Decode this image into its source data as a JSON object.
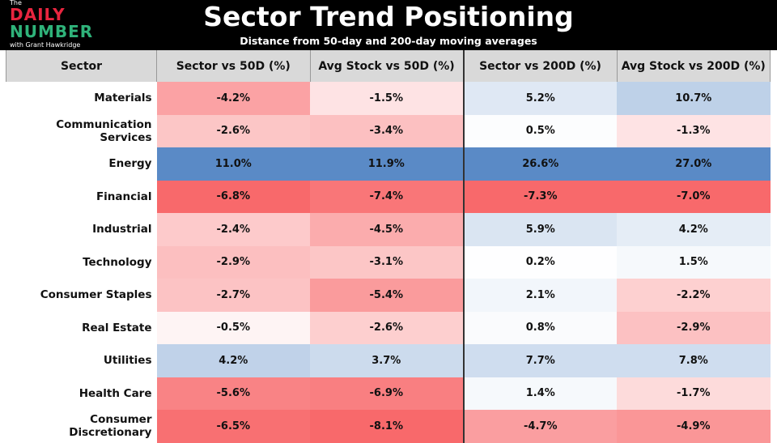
{
  "logo": {
    "the": "The",
    "daily": "DAILY",
    "number": "NUMBER",
    "byline": "with Grant Hawkridge"
  },
  "header": {
    "title": "Sector Trend Positioning",
    "subtitle": "Distance from 50-day and 200-day moving averages"
  },
  "chart_data": {
    "type": "heatmap",
    "columns": [
      "Sector",
      "Sector vs 50D (%)",
      "Avg Stock vs 50D (%)",
      "Sector vs 200D (%)",
      "Avg Stock vs 200D (%)"
    ],
    "rows": [
      {
        "sector": "Materials",
        "values": [
          -4.2,
          -1.5,
          5.2,
          10.7
        ]
      },
      {
        "sector": "Communication Services",
        "values": [
          -2.6,
          -3.4,
          0.5,
          -1.3
        ]
      },
      {
        "sector": "Energy",
        "values": [
          11.0,
          11.9,
          26.6,
          27.0
        ]
      },
      {
        "sector": "Financial",
        "values": [
          -6.8,
          -7.4,
          -7.3,
          -7.0
        ]
      },
      {
        "sector": "Industrial",
        "values": [
          -2.4,
          -4.5,
          5.9,
          4.2
        ]
      },
      {
        "sector": "Technology",
        "values": [
          -2.9,
          -3.1,
          0.2,
          1.5
        ]
      },
      {
        "sector": "Consumer Staples",
        "values": [
          -2.7,
          -5.4,
          2.1,
          -2.2
        ]
      },
      {
        "sector": "Real Estate",
        "values": [
          -0.5,
          -2.6,
          0.8,
          -2.9
        ]
      },
      {
        "sector": "Utilities",
        "values": [
          4.2,
          3.7,
          7.7,
          7.8
        ]
      },
      {
        "sector": "Health Care",
        "values": [
          -5.6,
          -6.9,
          1.4,
          -1.7
        ]
      },
      {
        "sector": "Consumer Discretionary",
        "values": [
          -6.5,
          -8.1,
          -4.7,
          -4.9
        ]
      }
    ],
    "colors": {
      "negative": "#f8696b",
      "neutral": "#ffffff",
      "positive": "#5a8ac6"
    }
  }
}
